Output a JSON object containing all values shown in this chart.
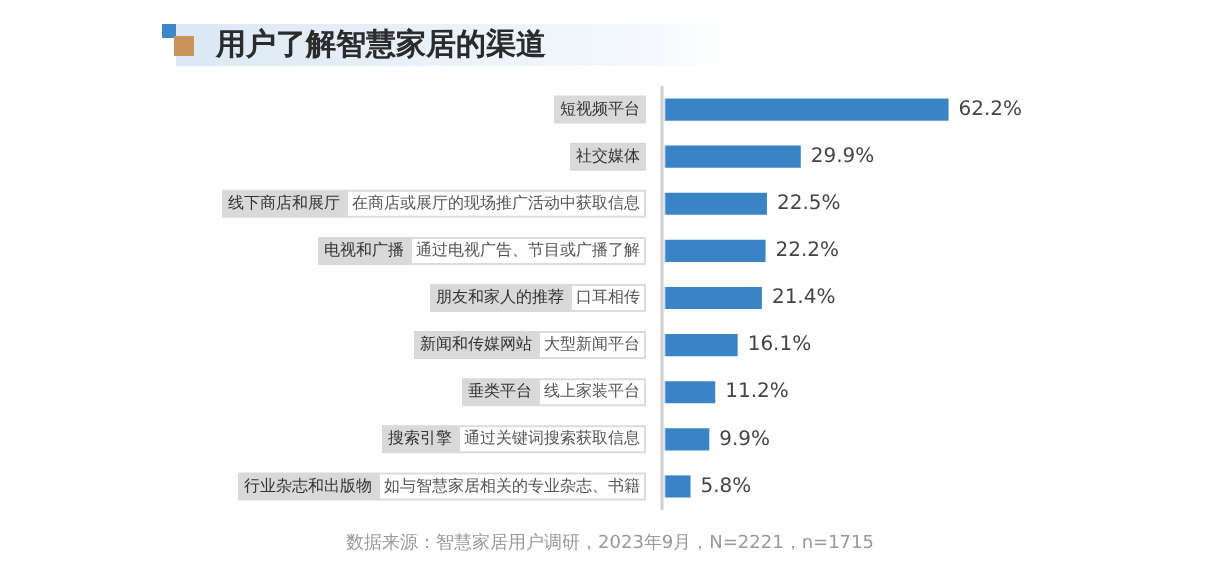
{
  "chart_data": {
    "type": "bar",
    "orientation": "horizontal",
    "title": "用户了解智慧家居的渠道",
    "categories": [
      "短视频平台",
      "社交媒体",
      "线下商店和展厅 在商店或展厅的现场推广活动中获取信息",
      "电视和广播 通过电视广告、节目或广播了解",
      "朋友和家人的推荐 口耳相传",
      "新闻和传媒网站 大型新闻平台",
      "垂类平台 线上家装平台",
      "搜索引擎 通过关键词搜索获取信息",
      "行业杂志和出版物 如与智慧家居相关的专业杂志、书籍"
    ],
    "values": [
      62.2,
      29.9,
      22.5,
      22.2,
      21.4,
      16.1,
      11.2,
      9.9,
      5.8
    ],
    "value_labels": [
      "62.2%",
      "29.9%",
      "22.5%",
      "22.2%",
      "21.4%",
      "16.1%",
      "11.2%",
      "9.9%",
      "5.8%"
    ],
    "color": "#3a84c6",
    "annotations": [
      "数据来源：智慧家居用户调研，2023年9月，N=2221，n=1715"
    ]
  }
}
